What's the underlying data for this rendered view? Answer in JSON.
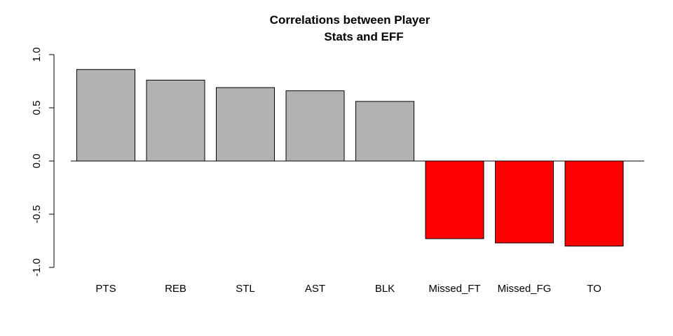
{
  "chart_data": {
    "type": "bar",
    "title_lines": [
      "Correlations between Player",
      "Stats and EFF"
    ],
    "xlabel": "",
    "ylabel": "",
    "ylim": [
      -1.0,
      1.0
    ],
    "yticks": [
      -1.0,
      -0.5,
      0.0,
      0.5,
      1.0
    ],
    "ytick_labels": [
      "-1.0",
      "-0.5",
      "0.0",
      "0.5",
      "1.0"
    ],
    "categories": [
      "PTS",
      "REB",
      "STL",
      "AST",
      "BLK",
      "Missed_FT",
      "Missed_FG",
      "TO"
    ],
    "values": [
      0.86,
      0.76,
      0.69,
      0.66,
      0.56,
      -0.73,
      -0.77,
      -0.8
    ],
    "bar_colors": [
      "#b2b2b2",
      "#b2b2b2",
      "#b2b2b2",
      "#b2b2b2",
      "#b2b2b2",
      "#ff0000",
      "#ff0000",
      "#ff0000"
    ],
    "reference_line": 0,
    "grid": false,
    "legend": "none"
  }
}
